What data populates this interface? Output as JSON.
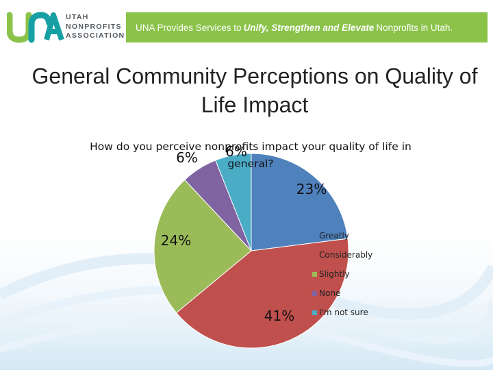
{
  "header": {
    "logo_mark": "UNA",
    "logo_lines": [
      "UTAH",
      "NONPROFITS",
      "ASSOCIATION"
    ],
    "tagline_parts": [
      "UNA Provides Services to",
      "Unify, Strengthen and Elevate",
      "Nonprofits in Utah."
    ],
    "colors": {
      "brand_green": "#8bc34a",
      "brand_teal": "#16a0a4",
      "logo_gray": "#555b60"
    }
  },
  "slide_title": "General Community Perceptions on Quality of Life Impact",
  "chart_data": {
    "type": "pie",
    "title": "How do you perceive nonprofits impact your quality of life in general?",
    "categories": [
      "Greatly",
      "Considerably",
      "Slightly",
      "None",
      "I'm not sure"
    ],
    "values": [
      23,
      41,
      24,
      6,
      6
    ],
    "data_labels": [
      "23%",
      "41%",
      "24%",
      "6%",
      "6%"
    ],
    "colors": [
      "#4f81bd",
      "#c0504d",
      "#9bbb59",
      "#8064a2",
      "#4bacc6"
    ],
    "legend_position": "right"
  }
}
